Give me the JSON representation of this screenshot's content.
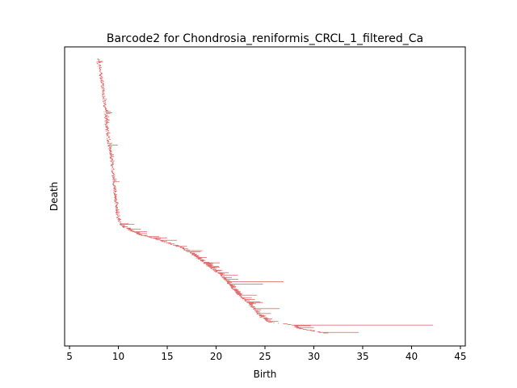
{
  "chart_data": {
    "type": "barcode",
    "title": "Barcode2 for Chondrosia_reniformis_CRCL_1_filtered_Ca",
    "xlabel": "Birth",
    "ylabel": "Death",
    "xlim": [
      4.5,
      45.5
    ],
    "xticks": [
      5,
      10,
      15,
      20,
      25,
      30,
      35,
      40,
      45
    ],
    "yticks_visible": false,
    "bar_color": "#e06666",
    "num_bars": 450,
    "bar_order": "sorted by birth, top to bottom",
    "bars_highlighted": [
      {
        "birth": 9.0,
        "death": 9.95
      },
      {
        "birth": 12.3,
        "death": 13.0
      },
      {
        "birth": 13.3,
        "death": 15.0
      },
      {
        "birth": 21.1,
        "death": 26.9
      },
      {
        "birth": 21.3,
        "death": 24.8
      },
      {
        "birth": 23.8,
        "death": 26.5
      },
      {
        "birth": 27.7,
        "death": 42.2
      },
      {
        "birth": 28.2,
        "death": 30.0
      },
      {
        "birth": 30.5,
        "death": 34.6
      }
    ]
  }
}
